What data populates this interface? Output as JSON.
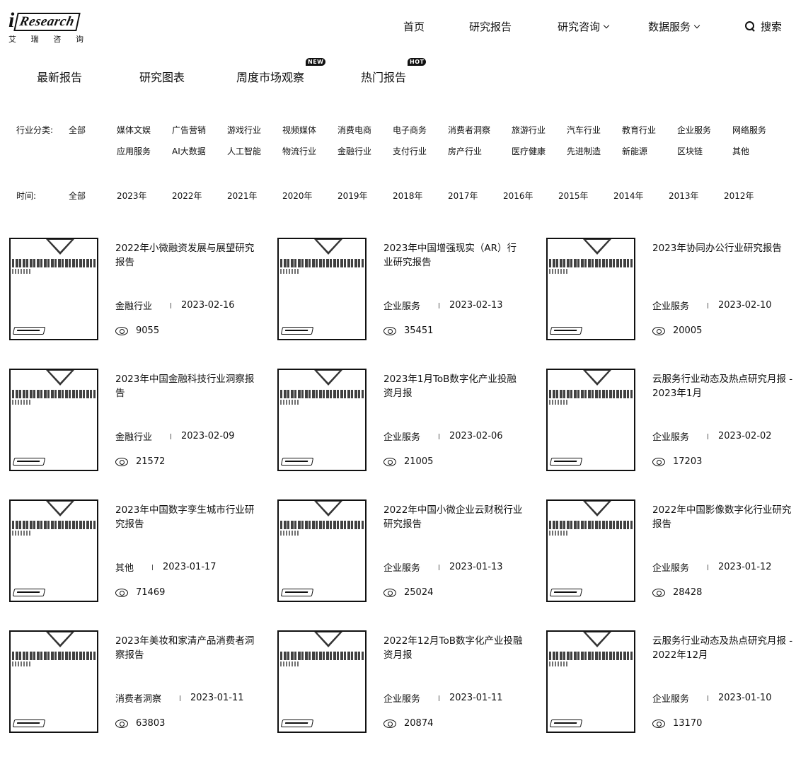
{
  "logo": {
    "mark_i": "i",
    "mark_word": "Research",
    "sub": [
      "艾",
      "瑞",
      "咨",
      "询"
    ]
  },
  "nav": {
    "home": "首页",
    "reports": "研究报告",
    "consult": "研究咨询",
    "data": "数据服务",
    "search": "搜索"
  },
  "tabs": [
    {
      "label": "最新报告"
    },
    {
      "label": "研究图表"
    },
    {
      "label": "周度市场观察",
      "badge": "NEW"
    },
    {
      "label": "热门报告",
      "badge": "HOT"
    }
  ],
  "filters": {
    "industry_label": "行业分类:",
    "industry": [
      "全部",
      "媒体文娱",
      "广告营销",
      "游戏行业",
      "视频媒体",
      "消费电商",
      "电子商务",
      "消费者洞察",
      "旅游行业",
      "汽车行业",
      "教育行业",
      "企业服务",
      "网络服务",
      "应用服务",
      "AI大数据",
      "人工智能",
      "物流行业",
      "金融行业",
      "支付行业",
      "房产行业",
      "医疗健康",
      "先进制造",
      "新能源",
      "区块链",
      "其他"
    ],
    "time_label": "时间:",
    "time": [
      "全部",
      "2023年",
      "2022年",
      "2021年",
      "2020年",
      "2019年",
      "2018年",
      "2017年",
      "2016年",
      "2015年",
      "2014年",
      "2013年",
      "2012年"
    ]
  },
  "reports": [
    {
      "title": "2022年小微融资发展与展望研究报告",
      "category": "金融行业",
      "date": "2023-02-16",
      "views": "9055"
    },
    {
      "title": "2023年中国增强现实（AR）行业研究报告",
      "category": "企业服务",
      "date": "2023-02-13",
      "views": "35451"
    },
    {
      "title": "2023年协同办公行业研究报告",
      "category": "企业服务",
      "date": "2023-02-10",
      "views": "20005"
    },
    {
      "title": "2023年中国金融科技行业洞察报告",
      "category": "金融行业",
      "date": "2023-02-09",
      "views": "21572"
    },
    {
      "title": "2023年1月ToB数字化产业投融资月报",
      "category": "企业服务",
      "date": "2023-02-06",
      "views": "21005"
    },
    {
      "title": "云服务行业动态及热点研究月报 - 2023年1月",
      "category": "企业服务",
      "date": "2023-02-02",
      "views": "17203"
    },
    {
      "title": "2023年中国数字孪生城市行业研究报告",
      "category": "其他",
      "date": "2023-01-17",
      "views": "71469"
    },
    {
      "title": "2022年中国小微企业云财税行业研究报告",
      "category": "企业服务",
      "date": "2023-01-13",
      "views": "25024"
    },
    {
      "title": "2022年中国影像数字化行业研究报告",
      "category": "企业服务",
      "date": "2023-01-12",
      "views": "28428"
    },
    {
      "title": "2023年美妆和家清产品消费者洞察报告",
      "category": "消费者洞察",
      "date": "2023-01-11",
      "views": "63803"
    },
    {
      "title": "2022年12月ToB数字化产业投融资月报",
      "category": "企业服务",
      "date": "2023-01-11",
      "views": "20874"
    },
    {
      "title": "云服务行业动态及热点研究月报 - 2022年12月",
      "category": "企业服务",
      "date": "2023-01-10",
      "views": "13170"
    }
  ]
}
